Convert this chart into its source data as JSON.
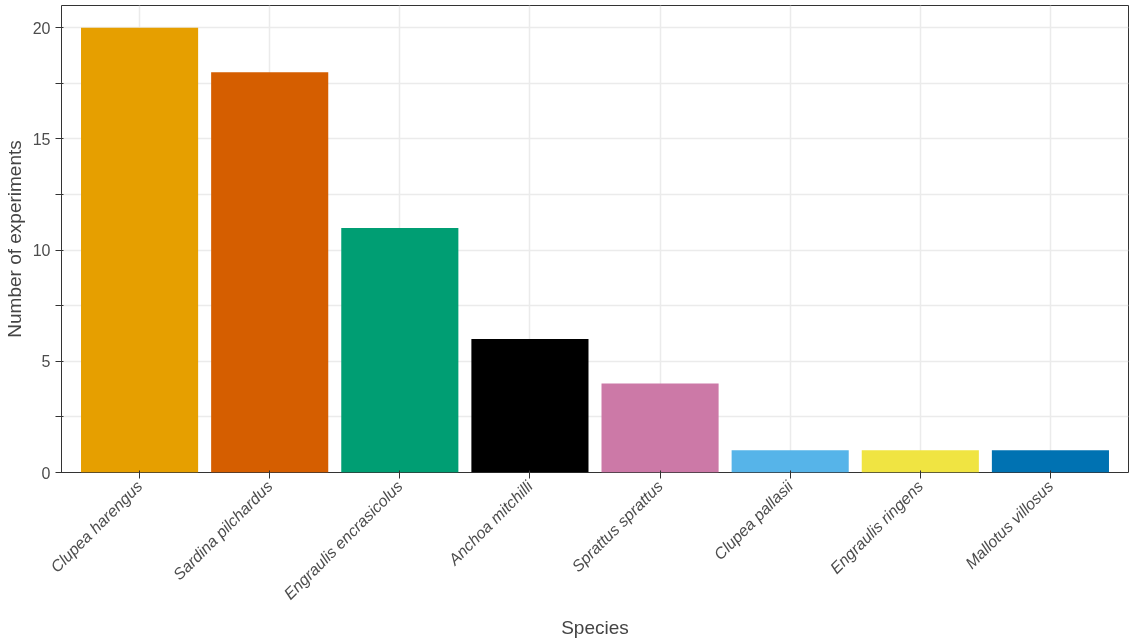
{
  "chart_data": {
    "type": "bar",
    "xlabel": "Species",
    "ylabel": "Number of experiments",
    "categories": [
      "Clupea harengus",
      "Sardina pilchardus",
      "Engraulis encrasicolus",
      "Anchoa mitchilli",
      "Sprattus sprattus",
      "Clupea pallasii",
      "Engraulis ringens",
      "Mallotus villosus"
    ],
    "values": [
      20,
      18,
      11,
      6,
      4,
      1,
      1,
      1
    ],
    "colors": [
      "#e69f00",
      "#d55e00",
      "#009e73",
      "#000000",
      "#cc79a7",
      "#56b4e9",
      "#f0e442",
      "#0072b2"
    ],
    "ylim": [
      0,
      21
    ],
    "yticks": [
      0,
      {
        "value": 2.5,
        "label": null
      },
      5,
      {
        "value": 7.5,
        "label": null
      },
      10,
      {
        "value": 12.5,
        "label": null
      },
      15,
      {
        "value": 17.5,
        "label": null
      },
      20
    ],
    "grid": true
  }
}
